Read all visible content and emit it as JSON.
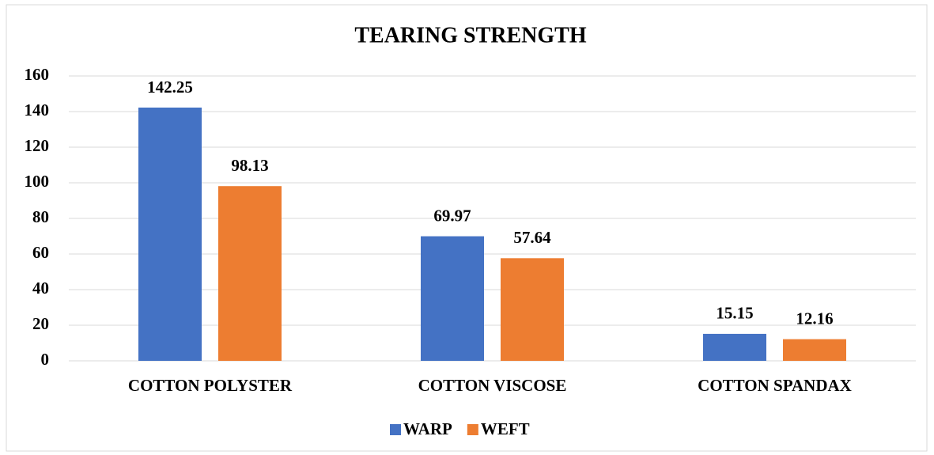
{
  "chart_data": {
    "type": "bar",
    "title": "TEARING STRENGTH",
    "categories": [
      "COTTON POLYSTER",
      "COTTON VISCOSE",
      "COTTON SPANDAX"
    ],
    "series": [
      {
        "name": "WARP",
        "color": "#4472c4",
        "values": [
          142.25,
          69.97,
          15.15
        ]
      },
      {
        "name": "WEFT",
        "color": "#ed7d31",
        "values": [
          98.13,
          57.64,
          12.16
        ]
      }
    ],
    "ylim": [
      0,
      160
    ],
    "yticks": [
      0,
      20,
      40,
      60,
      80,
      100,
      120,
      140,
      160
    ],
    "grid": true,
    "legend": "bottom"
  }
}
